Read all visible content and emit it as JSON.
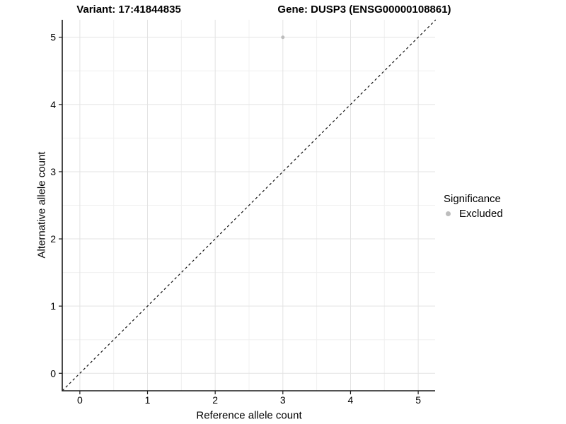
{
  "chart_data": {
    "type": "scatter",
    "title_left": "Variant: 17:41844835",
    "title_right": "Gene: DUSP3 (ENSG00000108861)",
    "xlabel": "Reference allele count",
    "ylabel": "Alternative allele count",
    "xlim": [
      -0.26,
      5.25
    ],
    "ylim": [
      -0.26,
      5.26
    ],
    "x_ticks": [
      0,
      1,
      2,
      3,
      4,
      5
    ],
    "y_ticks": [
      0,
      1,
      2,
      3,
      4,
      5
    ],
    "x_minor_ticks": [
      0.5,
      1.5,
      2.5,
      3.5,
      4.5
    ],
    "y_minor_ticks": [
      0.5,
      1.5,
      2.5,
      3.5,
      4.5
    ],
    "grid": true,
    "identity_line": {
      "style": "dashed",
      "slope": 1,
      "intercept": 0
    },
    "series": [
      {
        "name": "Excluded",
        "color": "#bdbdbd",
        "point_radius": 2.5,
        "points": [
          {
            "x": 3,
            "y": 5
          }
        ]
      }
    ],
    "legend": {
      "title": "Significance",
      "position": "right",
      "items": [
        {
          "label": "Excluded",
          "color": "#bdbdbd"
        }
      ]
    },
    "colors": {
      "grid_major": "#e3e3e3",
      "grid_minor": "#f0f0f0",
      "axis_line": "#1a1a1a",
      "tick": "#1a1a1a",
      "identity_line": "#111111"
    }
  }
}
